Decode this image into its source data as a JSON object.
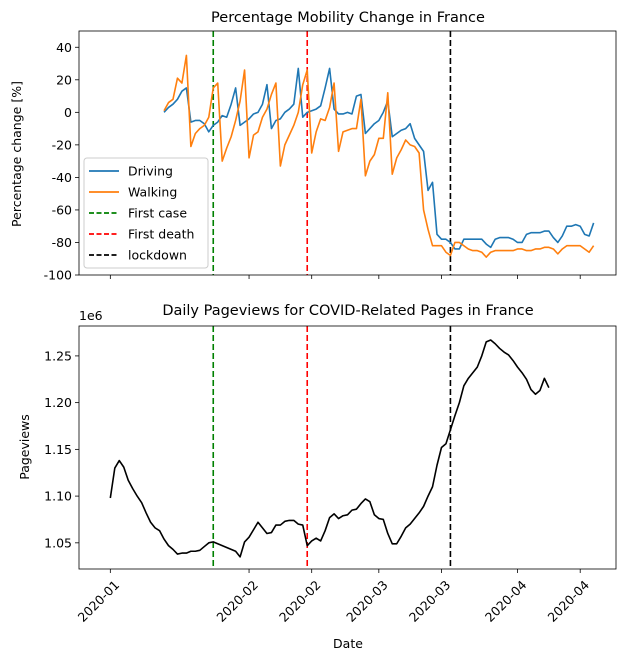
{
  "chart_data": [
    {
      "type": "line",
      "title": "Percentage Mobility Change in France",
      "xlabel": "",
      "ylabel": "Percentage change [%]",
      "ylim": [
        -100,
        50
      ],
      "yticks": [
        40,
        20,
        0,
        -20,
        -40,
        -60,
        -80,
        -100
      ],
      "grid": false,
      "legend_position": "lower-left",
      "x_start": "2020-01-13",
      "x_end": "2020-04-15",
      "series": [
        {
          "name": "Driving",
          "color": "#1f77b4",
          "values": [
            0,
            3,
            5,
            8,
            13,
            15,
            -6,
            -5,
            -5,
            -7,
            -12,
            -8,
            -6,
            -2,
            -3,
            5,
            15,
            -8,
            -6,
            -4,
            -1,
            0,
            5,
            17,
            -10,
            -5,
            -4,
            0,
            2,
            5,
            27,
            -3,
            0,
            1,
            2,
            4,
            15,
            27,
            2,
            -1,
            -1,
            0,
            -1,
            10,
            11,
            -13,
            -10,
            -7,
            -5,
            0,
            7,
            -15,
            -13,
            -11,
            -10,
            -7,
            -16,
            -20,
            -24,
            -48,
            -43,
            -75,
            -78,
            -78,
            -80,
            -84,
            -84,
            -78,
            -78,
            -78,
            -78,
            -78,
            -81,
            -83,
            -78,
            -77,
            -77,
            -77,
            -78,
            -80,
            -80,
            -75,
            -74,
            -74,
            -74,
            -73,
            -73,
            -77,
            -80,
            -76,
            -70,
            -70,
            -69,
            -70,
            -75,
            -76,
            -68
          ]
        },
        {
          "name": "Walking",
          "color": "#ff7f0e",
          "values": [
            1,
            6,
            8,
            21,
            18,
            35,
            -21,
            -13,
            -10,
            -8,
            -3,
            15,
            18,
            -30,
            -22,
            -15,
            -5,
            7,
            26,
            -28,
            -14,
            -12,
            -3,
            2,
            11,
            18,
            -33,
            -20,
            -14,
            -8,
            0,
            17,
            26,
            -25,
            -12,
            -4,
            -5,
            3,
            18,
            -24,
            -12,
            -11,
            -10,
            -10,
            8,
            -39,
            -30,
            -26,
            -16,
            -16,
            12,
            -38,
            -28,
            -23,
            -17,
            -20,
            -21,
            -25,
            -60,
            -72,
            -82,
            -82,
            -82,
            -86,
            -88,
            -80,
            -80,
            -82,
            -84,
            -85,
            -85,
            -86,
            -89,
            -86,
            -85,
            -85,
            -85,
            -85,
            -85,
            -84,
            -84,
            -85,
            -85,
            -84,
            -84,
            -83,
            -83,
            -84,
            -87,
            -84,
            -82,
            -82,
            -82,
            -82,
            -84,
            -86,
            -82
          ]
        }
      ],
      "events": [
        {
          "name": "First case",
          "date": "2020-01-24",
          "color": "#008000"
        },
        {
          "name": "First death",
          "date": "2020-02-14",
          "color": "#ff0000"
        },
        {
          "name": "lockdown",
          "date": "2020-03-17",
          "color": "#000000"
        }
      ]
    },
    {
      "type": "line",
      "title": "Daily Pageviews for COVID-Related Pages in France",
      "xlabel": "Date",
      "ylabel": "Pageviews",
      "scale_label": "1e6",
      "ylim": [
        1.022,
        1.282
      ],
      "yticks": [
        "1.25",
        "1.20",
        "1.15",
        "1.10",
        "1.05"
      ],
      "ytick_values": [
        1.25,
        1.2,
        1.15,
        1.1,
        1.05
      ],
      "xtick_labels": [
        "2020-01",
        "2020-02",
        "2020-02",
        "2020-03",
        "2020-03",
        "2020-04",
        "2020-04"
      ],
      "grid": false,
      "x_start": "2020-01-01",
      "x_end": "2020-04-15",
      "series": [
        {
          "name": "Pageviews",
          "color": "#000000",
          "values": [
            1.098,
            1.13,
            1.138,
            1.131,
            1.117,
            1.108,
            1.1,
            1.093,
            1.082,
            1.072,
            1.066,
            1.063,
            1.054,
            1.047,
            1.043,
            1.038,
            1.039,
            1.039,
            1.041,
            1.041,
            1.042,
            1.046,
            1.05,
            1.051,
            1.049,
            1.047,
            1.045,
            1.043,
            1.041,
            1.035,
            1.051,
            1.056,
            1.064,
            1.072,
            1.066,
            1.06,
            1.061,
            1.069,
            1.069,
            1.073,
            1.074,
            1.074,
            1.07,
            1.069,
            1.047,
            1.052,
            1.055,
            1.052,
            1.063,
            1.077,
            1.081,
            1.076,
            1.079,
            1.08,
            1.085,
            1.086,
            1.092,
            1.097,
            1.094,
            1.08,
            1.076,
            1.075,
            1.06,
            1.049,
            1.049,
            1.057,
            1.066,
            1.07,
            1.076,
            1.082,
            1.089,
            1.1,
            1.11,
            1.133,
            1.152,
            1.156,
            1.171,
            1.186,
            1.2,
            1.218,
            1.226,
            1.232,
            1.238,
            1.25,
            1.265,
            1.267,
            1.263,
            1.258,
            1.254,
            1.251,
            1.245,
            1.238,
            1.232,
            1.225,
            1.214,
            1.209,
            1.213,
            1.226,
            1.216
          ]
        }
      ],
      "events": [
        {
          "name": "First case",
          "date": "2020-01-24",
          "color": "#008000"
        },
        {
          "name": "First death",
          "date": "2020-02-14",
          "color": "#ff0000"
        },
        {
          "name": "lockdown",
          "date": "2020-03-17",
          "color": "#000000"
        }
      ]
    }
  ]
}
